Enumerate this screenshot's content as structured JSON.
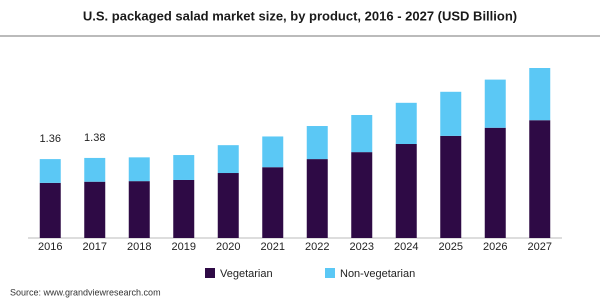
{
  "chart_data": {
    "type": "stacked-bar",
    "title": "U.S. packaged salad market size, by product, 2016 - 2027 (USD Billion)",
    "categories": [
      "2016",
      "2017",
      "2018",
      "2019",
      "2020",
      "2021",
      "2022",
      "2023",
      "2024",
      "2025",
      "2026",
      "2027"
    ],
    "series": [
      {
        "name": "Vegetarian",
        "color": "#2e0a45",
        "values": [
          0.95,
          0.97,
          0.98,
          1.0,
          1.12,
          1.22,
          1.36,
          1.48,
          1.62,
          1.76,
          1.9,
          2.03
        ]
      },
      {
        "name": "Non-vegetarian",
        "color": "#5bc8f5",
        "values": [
          0.41,
          0.41,
          0.41,
          0.43,
          0.48,
          0.53,
          0.57,
          0.64,
          0.71,
          0.76,
          0.83,
          0.9
        ]
      }
    ],
    "totals": [
      1.36,
      1.38,
      null,
      null,
      null,
      null,
      null,
      null,
      null,
      null,
      null,
      null
    ],
    "source": "Source: www.grandviewresearch.com"
  }
}
